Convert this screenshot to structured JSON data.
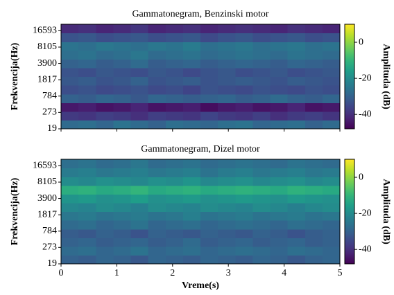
{
  "chart_data": [
    {
      "type": "heatmap",
      "title": "Gammatonegram, Benzinski motor",
      "ylabel": "Frekvencija(Hz)",
      "xlim": [
        0,
        5
      ],
      "xticks": [
        0,
        1,
        2,
        3,
        4,
        5
      ],
      "ylim": [
        19,
        22050
      ],
      "yticks": [
        19,
        273,
        784,
        1817,
        3900,
        8105,
        16593
      ],
      "yscale": "erb",
      "colormap": "viridis",
      "zlim": [
        -48,
        10
      ],
      "zticks": [
        -40,
        -20,
        0
      ],
      "colorbar_label": "Amplituda (dB)",
      "z": [
        [
          -28,
          -27,
          -29,
          -26,
          -28,
          -30,
          -27,
          -28,
          -29,
          -27,
          -26,
          -29,
          -28,
          -27,
          -30,
          -28
        ],
        [
          -38,
          -39,
          -37,
          -38,
          -40,
          -37,
          -38,
          -39,
          -36,
          -38,
          -39,
          -37,
          -40,
          -38,
          -37,
          -39
        ],
        [
          -44,
          -43,
          -45,
          -44,
          -42,
          -45,
          -44,
          -43,
          -46,
          -44,
          -43,
          -45,
          -44,
          -42,
          -45,
          -44
        ],
        [
          -30,
          -31,
          -29,
          -30,
          -32,
          -29,
          -30,
          -31,
          -30,
          -29,
          -31,
          -30,
          -28,
          -30,
          -31,
          -29
        ],
        [
          -34,
          -33,
          -35,
          -34,
          -33,
          -35,
          -34,
          -36,
          -33,
          -34,
          -35,
          -33,
          -34,
          -35,
          -33,
          -34
        ],
        [
          -32,
          -31,
          -33,
          -32,
          -30,
          -33,
          -32,
          -31,
          -33,
          -32,
          -31,
          -32,
          -33,
          -31,
          -32,
          -33
        ],
        [
          -33,
          -34,
          -32,
          -33,
          -34,
          -32,
          -33,
          -35,
          -33,
          -32,
          -34,
          -33,
          -32,
          -34,
          -33,
          -32
        ],
        [
          -30,
          -29,
          -31,
          -30,
          -28,
          -31,
          -30,
          -29,
          -31,
          -30,
          -29,
          -30,
          -31,
          -29,
          -30,
          -31
        ],
        [
          -27,
          -26,
          -28,
          -27,
          -25,
          -28,
          -27,
          -26,
          -28,
          -27,
          -26,
          -27,
          -28,
          -26,
          -27,
          -28
        ],
        [
          -26,
          -27,
          -25,
          -26,
          -27,
          -25,
          -26,
          -24,
          -27,
          -26,
          -25,
          -27,
          -26,
          -25,
          -27,
          -26
        ],
        [
          -33,
          -32,
          -34,
          -33,
          -32,
          -34,
          -33,
          -32,
          -35,
          -33,
          -32,
          -34,
          -33,
          -32,
          -34,
          -33
        ],
        [
          -41,
          -40,
          -42,
          -41,
          -39,
          -42,
          -41,
          -40,
          -42,
          -41,
          -40,
          -41,
          -42,
          -40,
          -41,
          -42
        ]
      ]
    },
    {
      "type": "heatmap",
      "title": "Gammatonegram, Dizel motor",
      "ylabel": "Frekvencija(Hz)",
      "xlabel": "Vreme(s)",
      "xlim": [
        0,
        5
      ],
      "xticks": [
        0,
        1,
        2,
        3,
        4,
        5
      ],
      "ylim": [
        19,
        22050
      ],
      "yticks": [
        19,
        273,
        784,
        1817,
        3900,
        8105,
        16593
      ],
      "yscale": "erb",
      "colormap": "viridis",
      "zlim": [
        -48,
        10
      ],
      "zticks": [
        -40,
        -20,
        0
      ],
      "colorbar_label": "Amplituda (dB)",
      "z": [
        [
          -30,
          -31,
          -29,
          -30,
          -32,
          -29,
          -30,
          -31,
          -29,
          -30,
          -31,
          -29,
          -30,
          -32,
          -30,
          -29
        ],
        [
          -28,
          -27,
          -29,
          -28,
          -26,
          -29,
          -28,
          -27,
          -29,
          -28,
          -27,
          -28,
          -29,
          -27,
          -28,
          -29
        ],
        [
          -30,
          -29,
          -31,
          -30,
          -29,
          -31,
          -30,
          -28,
          -31,
          -30,
          -29,
          -31,
          -30,
          -29,
          -31,
          -30
        ],
        [
          -31,
          -32,
          -30,
          -31,
          -33,
          -30,
          -31,
          -32,
          -30,
          -31,
          -32,
          -30,
          -31,
          -33,
          -31,
          -30
        ],
        [
          -28,
          -27,
          -29,
          -28,
          -26,
          -29,
          -28,
          -27,
          -29,
          -28,
          -27,
          -28,
          -29,
          -27,
          -28,
          -29
        ],
        [
          -25,
          -24,
          -26,
          -25,
          -24,
          -26,
          -25,
          -23,
          -26,
          -25,
          -24,
          -26,
          -25,
          -24,
          -26,
          -25
        ],
        [
          -21,
          -22,
          -20,
          -21,
          -23,
          -20,
          -21,
          -22,
          -20,
          -21,
          -22,
          -20,
          -21,
          -23,
          -21,
          -20
        ],
        [
          -18,
          -17,
          -19,
          -18,
          -16,
          -19,
          -18,
          -17,
          -19,
          -18,
          -17,
          -18,
          -19,
          -17,
          -18,
          -19
        ],
        [
          -12,
          -11,
          -13,
          -12,
          -10,
          -13,
          -12,
          -11,
          -13,
          -12,
          -11,
          -12,
          -13,
          -11,
          -12,
          -13
        ],
        [
          -20,
          -21,
          -19,
          -20,
          -21,
          -19,
          -20,
          -18,
          -21,
          -20,
          -19,
          -21,
          -20,
          -19,
          -21,
          -20
        ],
        [
          -24,
          -23,
          -25,
          -24,
          -23,
          -25,
          -24,
          -23,
          -26,
          -24,
          -23,
          -25,
          -24,
          -23,
          -25,
          -24
        ],
        [
          -27,
          -26,
          -28,
          -27,
          -25,
          -28,
          -27,
          -26,
          -28,
          -27,
          -26,
          -27,
          -28,
          -26,
          -27,
          -28
        ]
      ]
    }
  ]
}
